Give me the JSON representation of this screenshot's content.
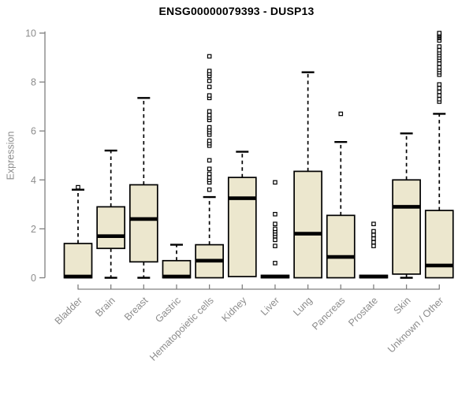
{
  "title": "ENSG00000079393 - DUSP13",
  "colors": {
    "background": "#ffffff",
    "box_fill": "#ECE7CE",
    "box_stroke": "#000000",
    "median": "#000000",
    "whisker": "#000000",
    "outlier_stroke": "#000000",
    "outlier_fill": "#ffffff",
    "axis_line": "#808080",
    "tick_label": "#8c8c8c",
    "title_color": "#000000"
  },
  "chart_data": {
    "type": "boxplot",
    "title": "ENSG00000079393 - DUSP13",
    "xlabel": "",
    "ylabel": "Expression",
    "ylim": [
      0,
      10
    ],
    "yticks": [
      0,
      2,
      4,
      6,
      8,
      10
    ],
    "grid": false,
    "legend": "none",
    "categories": [
      "Bladder",
      "Brain",
      "Breast",
      "Gastric",
      "Hematopoietic cells",
      "Kidney",
      "Liver",
      "Lung",
      "Pancreas",
      "Prostate",
      "Skin",
      "Unknown / Other"
    ],
    "series": [
      {
        "name": "Bladder",
        "whisker_low": 0,
        "q1": 0,
        "median": 0.05,
        "q3": 1.4,
        "whisker_high": 3.6,
        "outliers": [
          3.7
        ]
      },
      {
        "name": "Brain",
        "whisker_low": 0,
        "q1": 1.2,
        "median": 1.7,
        "q3": 2.9,
        "whisker_high": 5.2,
        "outliers": []
      },
      {
        "name": "Breast",
        "whisker_low": 0,
        "q1": 0.65,
        "median": 2.4,
        "q3": 3.8,
        "whisker_high": 7.35,
        "outliers": []
      },
      {
        "name": "Gastric",
        "whisker_low": 0,
        "q1": 0,
        "median": 0.05,
        "q3": 0.7,
        "whisker_high": 1.35,
        "outliers": []
      },
      {
        "name": "Hematopoietic cells",
        "whisker_low": 0,
        "q1": 0,
        "median": 0.7,
        "q3": 1.35,
        "whisker_high": 3.3,
        "outliers": [
          3.6,
          3.9,
          4.0,
          4.1,
          4.25,
          4.45,
          4.8,
          5.4,
          5.5,
          5.6,
          5.85,
          5.95,
          6.05,
          6.15,
          6.45,
          6.55,
          6.65,
          6.8,
          7.35,
          7.45,
          7.8,
          8.05,
          8.25,
          8.35,
          8.45,
          9.05
        ]
      },
      {
        "name": "Kidney",
        "whisker_low": 0.05,
        "q1": 0.05,
        "median": 3.25,
        "q3": 4.1,
        "whisker_high": 5.15,
        "outliers": []
      },
      {
        "name": "Liver",
        "whisker_low": 0,
        "q1": 0,
        "median": 0.05,
        "q3": 0.1,
        "whisker_high": 0.1,
        "outliers": [
          0.6,
          1.3,
          1.55,
          1.7,
          1.8,
          1.9,
          2.0,
          2.2,
          2.6,
          3.9
        ]
      },
      {
        "name": "Lung",
        "whisker_low": 0,
        "q1": 0,
        "median": 1.8,
        "q3": 4.35,
        "whisker_high": 8.4,
        "outliers": []
      },
      {
        "name": "Pancreas",
        "whisker_low": 0,
        "q1": 0,
        "median": 0.85,
        "q3": 2.55,
        "whisker_high": 5.55,
        "outliers": [
          6.7
        ]
      },
      {
        "name": "Prostate",
        "whisker_low": 0,
        "q1": 0,
        "median": 0.05,
        "q3": 0.1,
        "whisker_high": 0.1,
        "outliers": [
          1.3,
          1.45,
          1.6,
          1.75,
          1.9,
          2.2
        ]
      },
      {
        "name": "Skin",
        "whisker_low": 0,
        "q1": 0.15,
        "median": 2.9,
        "q3": 4.0,
        "whisker_high": 5.9,
        "outliers": []
      },
      {
        "name": "Unknown / Other",
        "whisker_low": 0,
        "q1": 0,
        "median": 0.5,
        "q3": 2.75,
        "whisker_high": 6.7,
        "outliers": [
          7.2,
          7.3,
          7.45,
          7.6,
          7.75,
          7.9,
          8.3,
          8.4,
          8.5,
          8.6,
          8.75,
          8.9,
          9.0,
          9.1,
          9.2,
          9.3,
          9.45,
          9.7,
          9.8,
          9.85,
          9.9,
          9.95,
          10.0
        ]
      }
    ]
  }
}
